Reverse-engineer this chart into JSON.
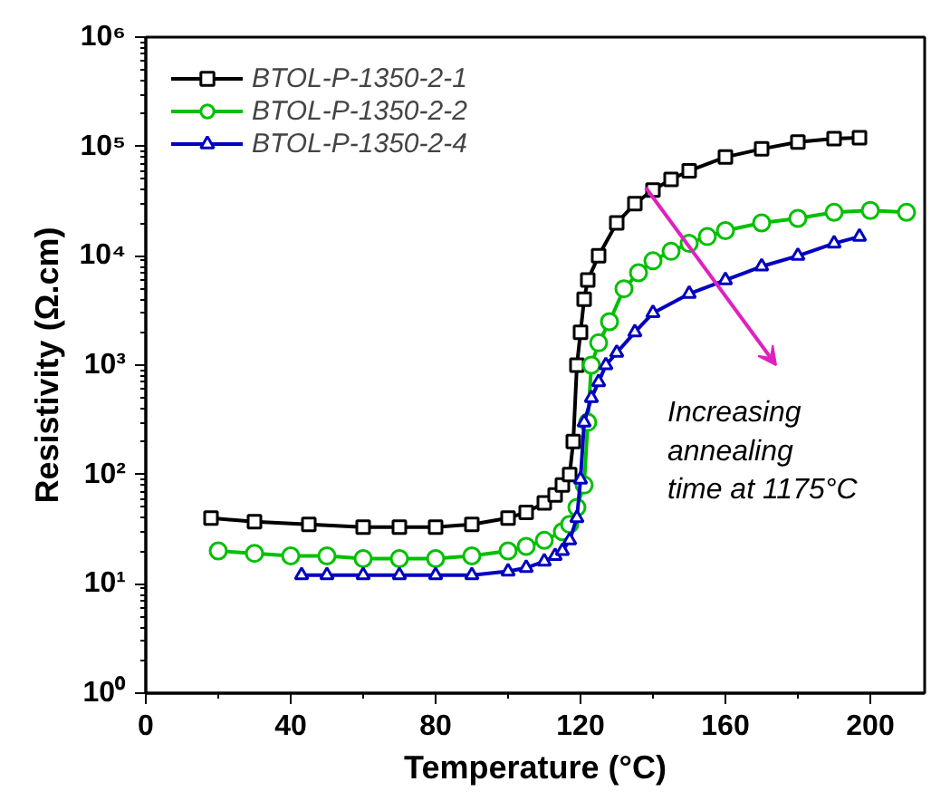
{
  "chart_data": {
    "type": "line",
    "xlabel": "Temperature (°C)",
    "ylabel": "Resistivity (Ω.cm)",
    "log": "y",
    "xlim": [
      0,
      215
    ],
    "ylim": [
      1,
      1000000
    ],
    "xticks": [
      0,
      40,
      80,
      120,
      160,
      200
    ],
    "yticks": [
      {
        "value": 1,
        "label": "10⁰"
      },
      {
        "value": 10,
        "label": "10¹"
      },
      {
        "value": 100,
        "label": "10²"
      },
      {
        "value": 1000,
        "label": "10³"
      },
      {
        "value": 10000,
        "label": "10⁴"
      },
      {
        "value": 100000,
        "label": "10⁵"
      },
      {
        "value": 1000000,
        "label": "10⁶"
      }
    ],
    "grid": false,
    "legend": "top left",
    "annotations": [
      "Increasing\nannealing\ntime at 1175°C"
    ],
    "series": [
      {
        "name": "BTOL-P-1350-2-1",
        "color": "#000000",
        "marker": "square",
        "x": [
          18,
          30,
          45,
          60,
          70,
          80,
          90,
          100,
          105,
          110,
          113,
          115,
          117,
          118,
          119,
          120,
          121,
          122,
          125,
          130,
          135,
          140,
          145,
          150,
          160,
          170,
          180,
          190,
          197
        ],
        "values": [
          40,
          37,
          35,
          33,
          33,
          33,
          35,
          40,
          45,
          55,
          65,
          80,
          100,
          200,
          1000,
          2000,
          4000,
          6000,
          10000,
          20000,
          30000,
          40000,
          50000,
          60000,
          80000,
          95000,
          110000,
          118000,
          120000
        ]
      },
      {
        "name": "BTOL-P-1350-2-2",
        "color": "#00c000",
        "marker": "circle",
        "x": [
          20,
          30,
          40,
          50,
          60,
          70,
          80,
          90,
          100,
          105,
          110,
          115,
          117,
          119,
          121,
          122,
          123,
          125,
          128,
          132,
          136,
          140,
          145,
          150,
          155,
          160,
          170,
          180,
          190,
          200,
          210
        ],
        "values": [
          20,
          19,
          18,
          18,
          17,
          17,
          17,
          18,
          20,
          22,
          25,
          30,
          35,
          50,
          80,
          300,
          1000,
          1600,
          2500,
          5000,
          7000,
          9000,
          11000,
          13000,
          15000,
          17000,
          20000,
          22000,
          25000,
          26000,
          25000
        ]
      },
      {
        "name": "BTOL-P-1350-2-4",
        "color": "#0000c0",
        "marker": "triangle",
        "x": [
          43,
          50,
          60,
          70,
          80,
          90,
          100,
          105,
          110,
          113,
          115,
          117,
          119,
          120,
          121,
          123,
          125,
          127,
          130,
          135,
          140,
          150,
          160,
          170,
          180,
          190,
          197
        ],
        "values": [
          12,
          12,
          12,
          12,
          12,
          12,
          13,
          14,
          16,
          18,
          20,
          25,
          40,
          90,
          300,
          500,
          700,
          1000,
          1300,
          2000,
          3000,
          4500,
          6000,
          8000,
          10000,
          13000,
          15000
        ]
      }
    ]
  }
}
